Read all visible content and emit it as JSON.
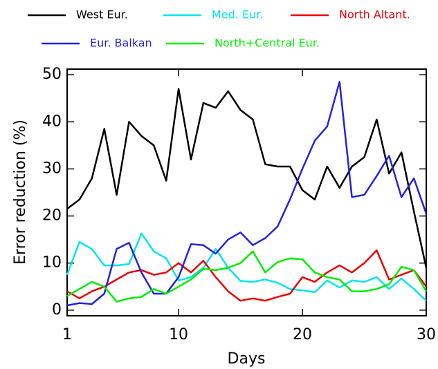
{
  "chart_data": {
    "type": "line",
    "x_label": "Days",
    "y_label": "Error reduction (%)",
    "x": [
      1,
      2,
      3,
      4,
      5,
      6,
      7,
      8,
      9,
      10,
      11,
      12,
      13,
      14,
      15,
      16,
      17,
      18,
      19,
      20,
      21,
      22,
      23,
      24,
      25,
      26,
      27,
      28,
      29,
      30
    ],
    "xlim": [
      1,
      30
    ],
    "xticks": [
      1,
      10,
      20,
      30
    ],
    "ylim": [
      -1.2,
      51.2
    ],
    "yticks": [
      0,
      10,
      20,
      30,
      40,
      50
    ],
    "series": [
      {
        "name": "West Eur.",
        "color": "#000000",
        "values": [
          21.5,
          23.5,
          28,
          38.5,
          24.5,
          40,
          37,
          35,
          27.5,
          47,
          32,
          44,
          43,
          46.5,
          42.5,
          40.5,
          31,
          30.5,
          30.5,
          25.5,
          23.5,
          30.5,
          26,
          30.5,
          32.5,
          40.5,
          29,
          33.5,
          21,
          9
        ]
      },
      {
        "name": "Med. Eur.",
        "color": "#00e5ee",
        "values": [
          7.5,
          14.5,
          13,
          9.5,
          9.5,
          9.8,
          16.3,
          12.5,
          11,
          6.3,
          7,
          9,
          13,
          9,
          6.2,
          6,
          6.5,
          5.8,
          4.5,
          4.2,
          3.8,
          6.3,
          4.8,
          6.3,
          6,
          7,
          4.5,
          6.7,
          4.5,
          2
        ]
      },
      {
        "name": "North Altant.",
        "color": "#ee0000",
        "values": [
          4,
          2.5,
          4,
          5,
          6.5,
          8,
          8.5,
          7.5,
          8,
          10,
          8,
          10.5,
          7,
          4,
          2,
          2.5,
          2,
          2.8,
          3.5,
          7,
          6,
          8,
          9.5,
          8,
          10,
          12.7,
          6.5,
          7.5,
          8.5,
          5
        ]
      },
      {
        "name": "Eur. Balkan",
        "color": "#2222dd",
        "values": [
          1,
          1.5,
          1.3,
          3.5,
          13,
          14.3,
          8,
          3.5,
          3.5,
          7,
          14,
          13.8,
          12,
          15,
          16.5,
          13.8,
          15.3,
          17.8,
          23.5,
          30,
          36,
          39,
          48.5,
          24,
          24.5,
          28.5,
          32.8,
          24,
          28,
          20.5
        ]
      },
      {
        "name": "North+Central Eur.",
        "color": "#00ee00",
        "values": [
          3,
          4.5,
          6,
          5,
          1.8,
          2.5,
          2.8,
          4.5,
          3.5,
          5,
          6.5,
          8.8,
          8.5,
          9,
          10,
          12.5,
          8,
          10.2,
          11,
          10.8,
          8,
          7,
          6.5,
          4,
          4,
          4.5,
          5.5,
          9.2,
          8.5,
          4
        ]
      }
    ]
  }
}
